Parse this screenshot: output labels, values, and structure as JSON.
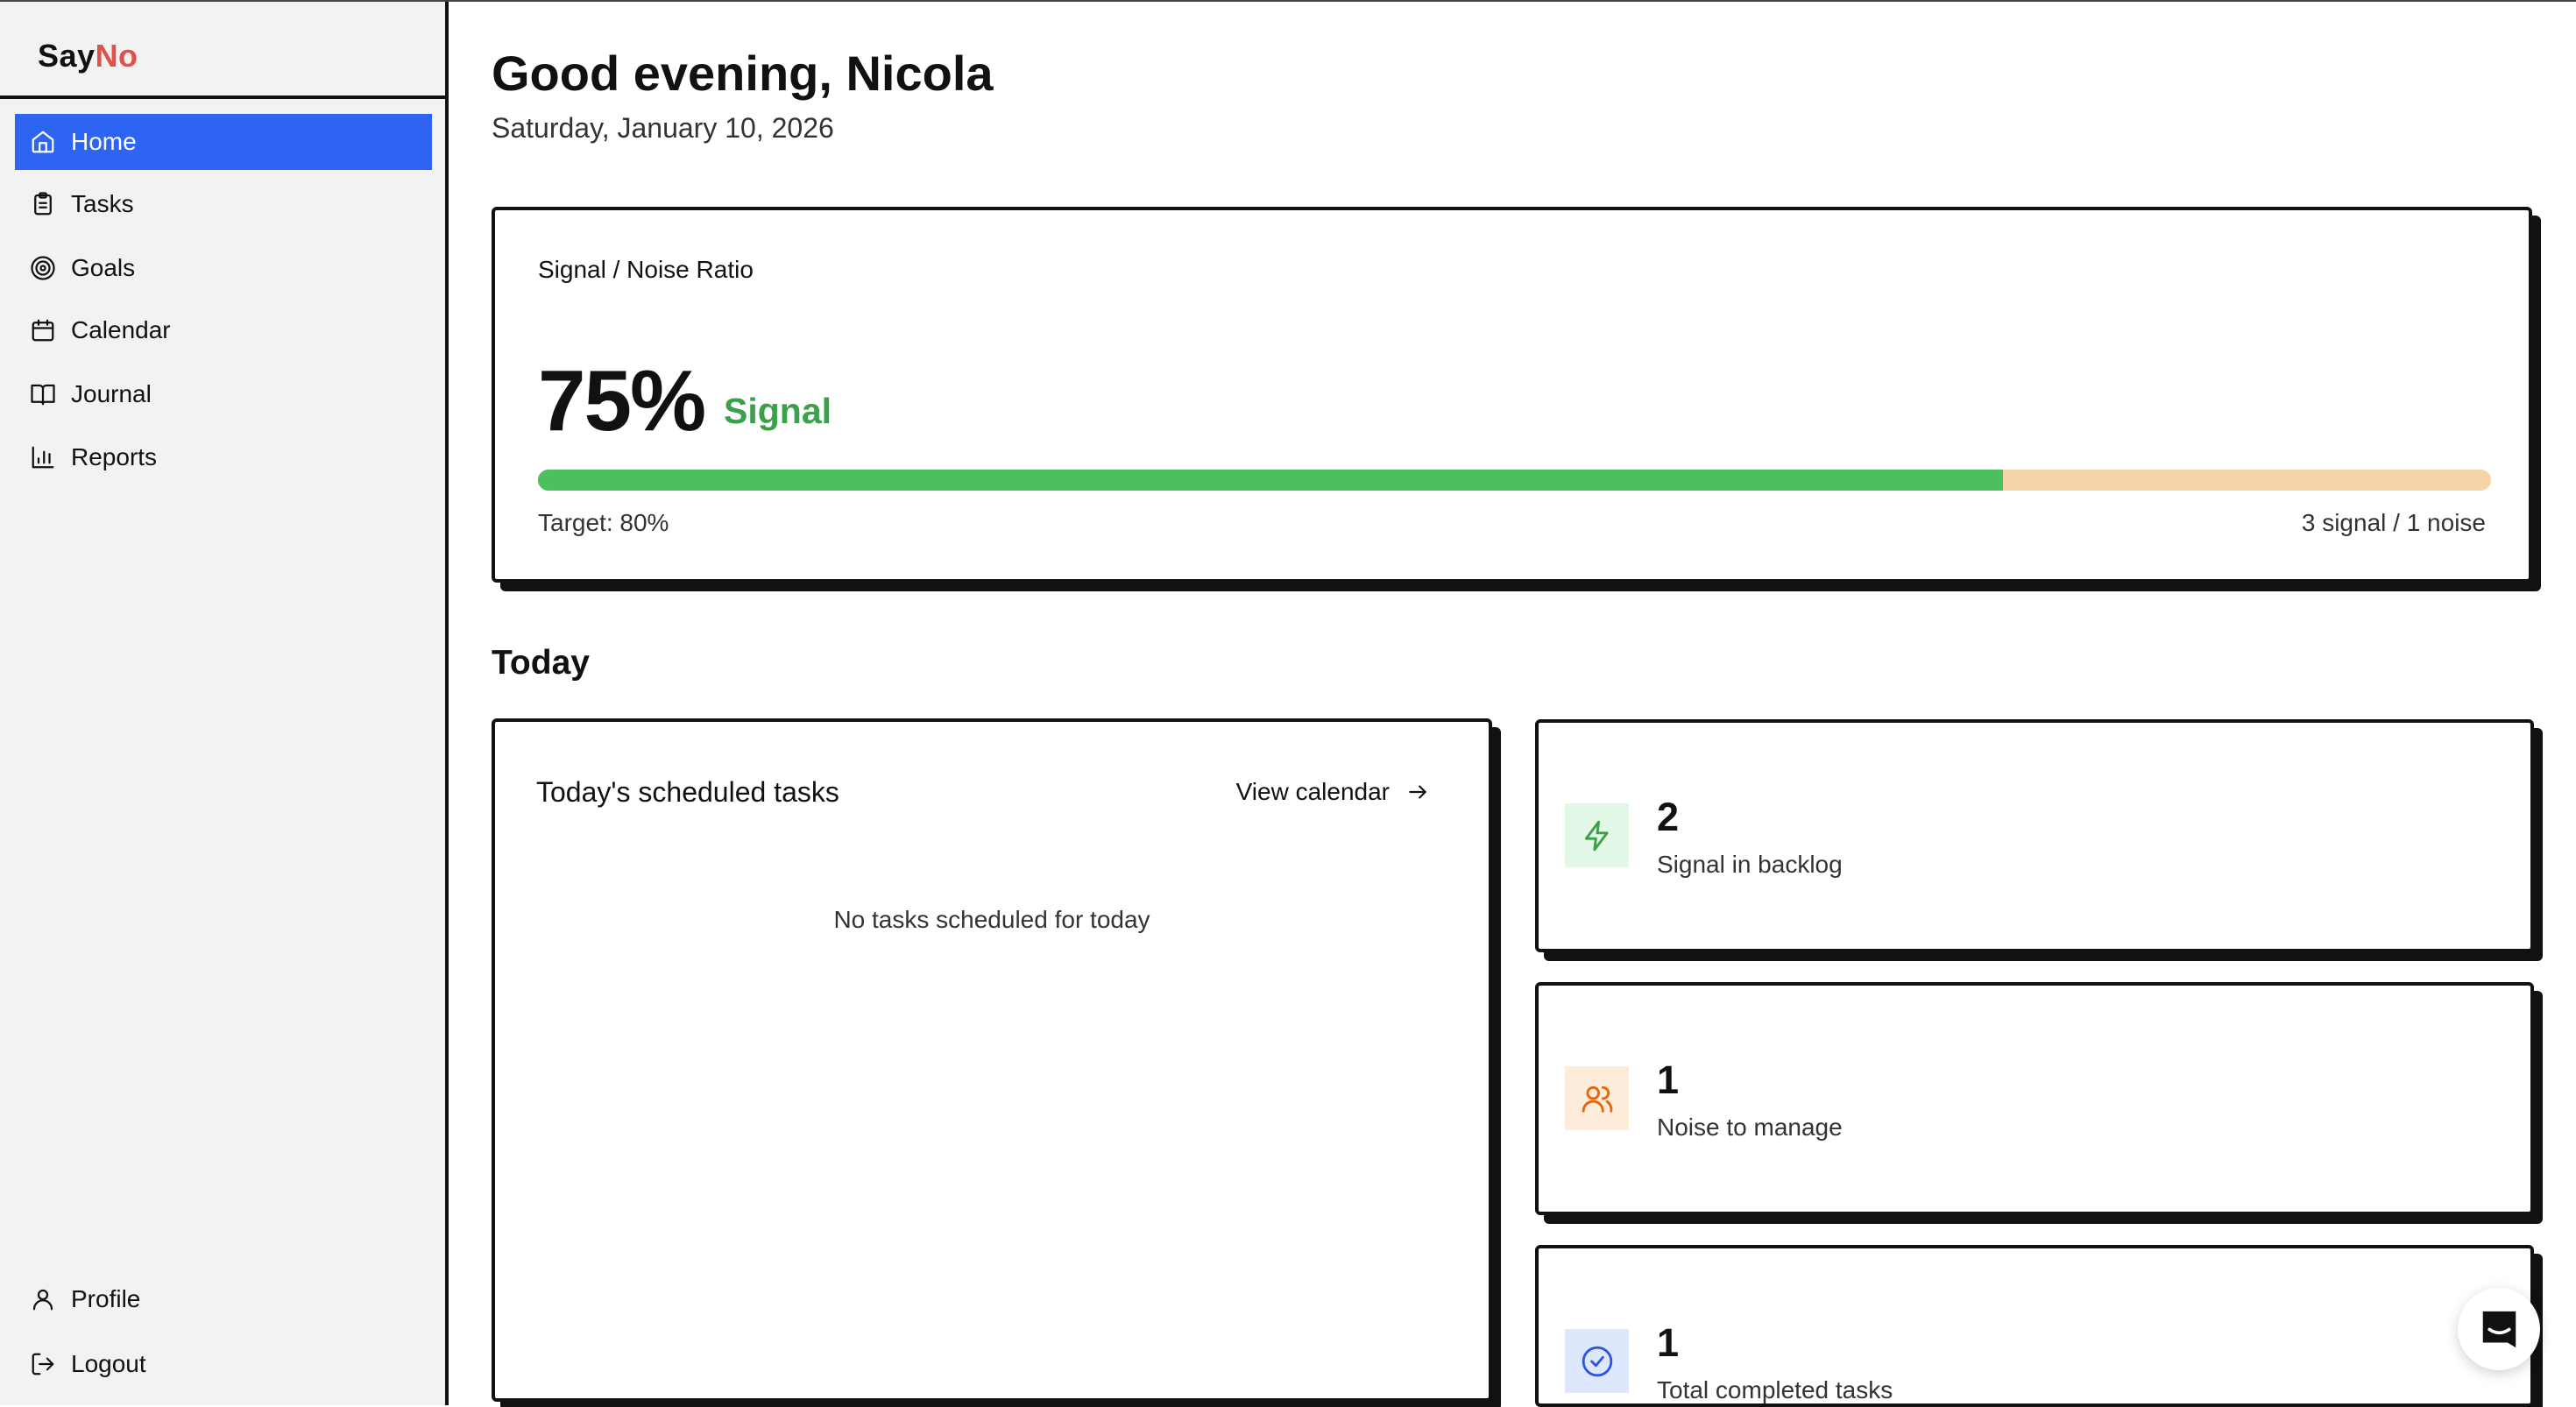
{
  "app": {
    "logo_say": "Say",
    "logo_no": "No"
  },
  "sidebar": {
    "items": [
      {
        "label": "Home",
        "icon": "home-icon",
        "active": true
      },
      {
        "label": "Tasks",
        "icon": "clipboard-icon"
      },
      {
        "label": "Goals",
        "icon": "target-icon"
      },
      {
        "label": "Calendar",
        "icon": "calendar-icon"
      },
      {
        "label": "Journal",
        "icon": "book-icon"
      },
      {
        "label": "Reports",
        "icon": "bar-chart-icon"
      }
    ],
    "bottom": [
      {
        "label": "Profile",
        "icon": "user-icon"
      },
      {
        "label": "Logout",
        "icon": "logout-icon"
      }
    ]
  },
  "header": {
    "greeting": "Good evening, Nicola",
    "date": "Saturday, January 10, 2026"
  },
  "signal_card": {
    "label": "Signal / Noise Ratio",
    "percent": "75%",
    "percent_value": 75,
    "status": "Signal",
    "target": "Target: 80%",
    "counts": "3 signal / 1 noise",
    "colors": {
      "signal": "#4cc05e",
      "noise": "#f5d5a8"
    }
  },
  "today": {
    "heading": "Today",
    "tasks_title": "Today's scheduled tasks",
    "view_calendar": "View calendar",
    "empty": "No tasks scheduled for today"
  },
  "stats": [
    {
      "value": "2",
      "label": "Signal in backlog",
      "icon": "lightning-icon",
      "color": "#3aa04a",
      "bg": "#e2f7e6"
    },
    {
      "value": "1",
      "label": "Noise to manage",
      "icon": "users-icon",
      "color": "#e8650f",
      "bg": "#fdecd9"
    },
    {
      "value": "1",
      "label": "Total completed tasks",
      "icon": "check-circle-icon",
      "color": "#2e55e0",
      "bg": "#dde8fc"
    }
  ],
  "accent": "#2e64f2"
}
